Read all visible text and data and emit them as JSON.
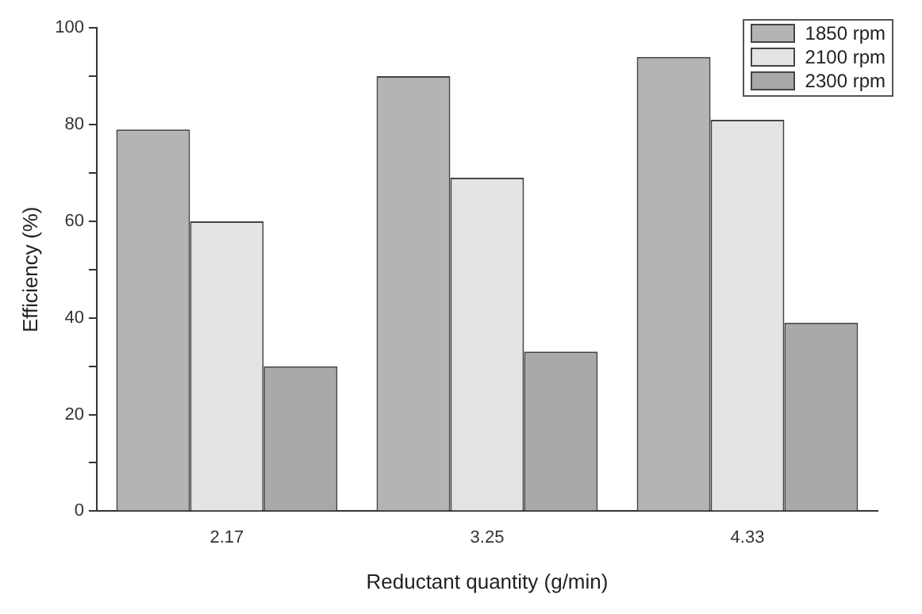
{
  "chart_data": {
    "type": "bar",
    "xlabel": "Reductant quantity (g/min)",
    "ylabel": "Efficiency (%)",
    "categories": [
      "2.17",
      "3.25",
      "4.33"
    ],
    "series": [
      {
        "name": "1850 rpm",
        "color": "#b4b4b4",
        "values": [
          79,
          90,
          94
        ]
      },
      {
        "name": "2100 rpm",
        "color": "#e4e4e4",
        "values": [
          60,
          69,
          81
        ]
      },
      {
        "name": "2300 rpm",
        "color": "#a9a9a9",
        "values": [
          30,
          33,
          39
        ]
      }
    ],
    "ylim": [
      0,
      100
    ],
    "yticks": [
      0,
      {
        "value": 10,
        "label": null
      },
      20,
      {
        "value": 30,
        "label": null
      },
      40,
      {
        "value": 50,
        "label": null
      },
      60,
      {
        "value": 70,
        "label": null
      },
      80,
      {
        "value": 90,
        "label": null
      },
      100
    ],
    "grid": false,
    "legend": "top right"
  }
}
